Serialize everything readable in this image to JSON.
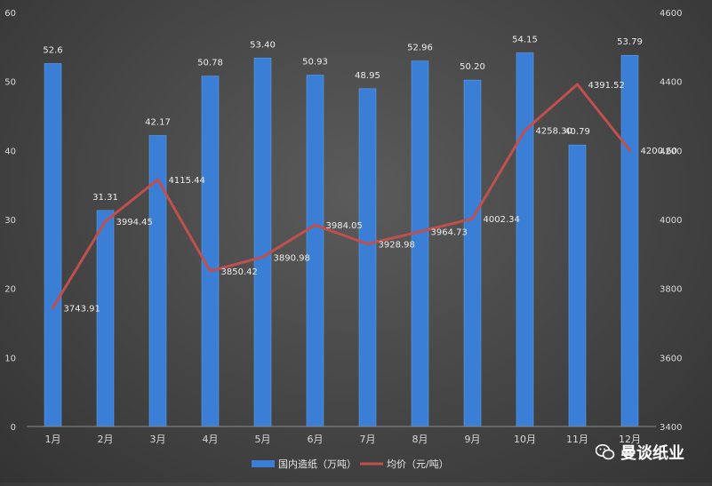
{
  "chart_data": {
    "type": "bar",
    "categories": [
      "1月",
      "2月",
      "3月",
      "4月",
      "5月",
      "6月",
      "7月",
      "8月",
      "9月",
      "10月",
      "11月",
      "12月"
    ],
    "series": [
      {
        "name": "国内造纸（万吨）",
        "type": "bar",
        "axis": "left",
        "color": "#3a7fd5",
        "values": [
          52.6,
          31.31,
          42.17,
          50.78,
          53.4,
          50.93,
          48.95,
          52.96,
          50.2,
          54.15,
          40.79,
          53.79
        ],
        "labels": [
          "52.6",
          "31.31",
          "42.17",
          "50.78",
          "53.40",
          "50.93",
          "48.95",
          "52.96",
          "50.20",
          "54.15",
          "40.79",
          "53.79"
        ]
      },
      {
        "name": "均价（元/吨）",
        "type": "line",
        "axis": "right",
        "color": "#c0504d",
        "values": [
          3743.91,
          3994.45,
          4115.44,
          3850.42,
          3890.98,
          3984.05,
          3928.98,
          3964.73,
          4002.34,
          4258.3,
          4391.52,
          4200.6
        ],
        "labels": [
          "3743.91",
          "3994.45",
          "4115.44",
          "3850.42",
          "3890.98",
          "3984.05",
          "3928.98",
          "3964.73",
          "4002.34",
          "4258.30",
          "4391.52",
          "4200.60"
        ]
      }
    ],
    "y_left": {
      "min": 0,
      "max": 60,
      "ticks": [
        "0",
        "10",
        "20",
        "30",
        "40",
        "50",
        "60"
      ]
    },
    "y_right": {
      "min": 3400,
      "max": 4600,
      "ticks": [
        "3400",
        "3600",
        "3800",
        "4000",
        "4200",
        "4400",
        "4600"
      ]
    },
    "grid": false,
    "legend_position": "bottom"
  },
  "watermark": {
    "text": "曼谈纸业",
    "icon": "wechat-icon"
  }
}
